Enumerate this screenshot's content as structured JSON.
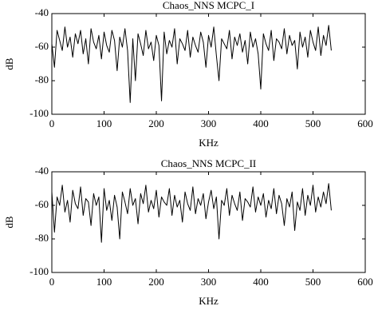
{
  "chart_data": [
    {
      "type": "line",
      "title": "Chaos_NNS MCPC_I",
      "xlabel": "KHz",
      "ylabel": "dB",
      "xlim": [
        0,
        600
      ],
      "xticks": [
        0,
        100,
        200,
        300,
        400,
        500,
        600
      ],
      "ylim": [
        -100,
        -40
      ],
      "yticks": [
        -100,
        -80,
        -60,
        -40
      ],
      "x": [
        0,
        5,
        10,
        15,
        20,
        25,
        30,
        35,
        40,
        45,
        50,
        55,
        60,
        65,
        70,
        75,
        80,
        85,
        90,
        95,
        100,
        105,
        110,
        115,
        120,
        125,
        130,
        135,
        140,
        145,
        150,
        155,
        160,
        165,
        170,
        175,
        180,
        185,
        190,
        195,
        200,
        205,
        210,
        215,
        220,
        225,
        230,
        235,
        240,
        245,
        250,
        255,
        260,
        265,
        270,
        275,
        280,
        285,
        290,
        295,
        300,
        305,
        310,
        315,
        320,
        325,
        330,
        335,
        340,
        345,
        350,
        355,
        360,
        365,
        370,
        375,
        380,
        385,
        390,
        395,
        400,
        405,
        410,
        415,
        420,
        425,
        430,
        435,
        440,
        445,
        450,
        455,
        460,
        465,
        470,
        475,
        480,
        485,
        490,
        495,
        500,
        505,
        510,
        515,
        520,
        525,
        530,
        535
      ],
      "series": [
        {
          "color": "#000000",
          "values": [
            -58,
            -72,
            -50,
            -56,
            -62,
            -48,
            -60,
            -54,
            -66,
            -52,
            -58,
            -50,
            -64,
            -55,
            -70,
            -49,
            -57,
            -61,
            -53,
            -67,
            -51,
            -59,
            -63,
            -50,
            -56,
            -74,
            -54,
            -60,
            -49,
            -62,
            -93,
            -55,
            -80,
            -52,
            -58,
            -65,
            -50,
            -61,
            -57,
            -68,
            -53,
            -59,
            -92,
            -51,
            -64,
            -56,
            -60,
            -49,
            -70,
            -55,
            -58,
            -62,
            -50,
            -66,
            -54,
            -59,
            -63,
            -51,
            -57,
            -72,
            -53,
            -60,
            -48,
            -65,
            -80,
            -55,
            -58,
            -61,
            -50,
            -67,
            -54,
            -59,
            -52,
            -63,
            -56,
            -70,
            -51,
            -60,
            -55,
            -64,
            -85,
            -52,
            -58,
            -62,
            -50,
            -68,
            -55,
            -57,
            -61,
            -49,
            -64,
            -53,
            -59,
            -56,
            -73,
            -51,
            -60,
            -54,
            -66,
            -50,
            -57,
            -62,
            -48,
            -65,
            -53,
            -59,
            -47,
            -62
          ]
        }
      ]
    },
    {
      "type": "line",
      "title": "Chaos_NNS MCPC_II",
      "xlabel": "KHz",
      "ylabel": "dB",
      "xlim": [
        0,
        600
      ],
      "xticks": [
        0,
        100,
        200,
        300,
        400,
        500,
        600
      ],
      "ylim": [
        -100,
        -40
      ],
      "yticks": [
        -100,
        -80,
        -60,
        -40
      ],
      "x": [
        0,
        5,
        10,
        15,
        20,
        25,
        30,
        35,
        40,
        45,
        50,
        55,
        60,
        65,
        70,
        75,
        80,
        85,
        90,
        95,
        100,
        105,
        110,
        115,
        120,
        125,
        130,
        135,
        140,
        145,
        150,
        155,
        160,
        165,
        170,
        175,
        180,
        185,
        190,
        195,
        200,
        205,
        210,
        215,
        220,
        225,
        230,
        235,
        240,
        245,
        250,
        255,
        260,
        265,
        270,
        275,
        280,
        285,
        290,
        295,
        300,
        305,
        310,
        315,
        320,
        325,
        330,
        335,
        340,
        345,
        350,
        355,
        360,
        365,
        370,
        375,
        380,
        385,
        390,
        395,
        400,
        405,
        410,
        415,
        420,
        425,
        430,
        435,
        440,
        445,
        450,
        455,
        460,
        465,
        470,
        475,
        480,
        485,
        490,
        495,
        500,
        505,
        510,
        515,
        520,
        525,
        530,
        535
      ],
      "series": [
        {
          "color": "#000000",
          "values": [
            -52,
            -76,
            -55,
            -60,
            -48,
            -64,
            -57,
            -70,
            -51,
            -59,
            -62,
            -49,
            -66,
            -56,
            -58,
            -72,
            -53,
            -60,
            -55,
            -82,
            -50,
            -63,
            -57,
            -69,
            -54,
            -61,
            -80,
            -52,
            -58,
            -65,
            -50,
            -60,
            -56,
            -71,
            -53,
            -59,
            -48,
            -64,
            -57,
            -62,
            -51,
            -67,
            -55,
            -58,
            -60,
            -50,
            -66,
            -54,
            -61,
            -57,
            -70,
            -52,
            -59,
            -63,
            -49,
            -65,
            -56,
            -60,
            -53,
            -68,
            -58,
            -51,
            -62,
            -55,
            -80,
            -57,
            -60,
            -50,
            -66,
            -54,
            -59,
            -63,
            -52,
            -69,
            -56,
            -58,
            -61,
            -49,
            -64,
            -55,
            -60,
            -53,
            -67,
            -57,
            -62,
            -50,
            -65,
            -54,
            -59,
            -72,
            -56,
            -61,
            -52,
            -75,
            -58,
            -63,
            -50,
            -66,
            -54,
            -60,
            -48,
            -64,
            -55,
            -61,
            -52,
            -59,
            -47,
            -63
          ]
        }
      ]
    }
  ]
}
